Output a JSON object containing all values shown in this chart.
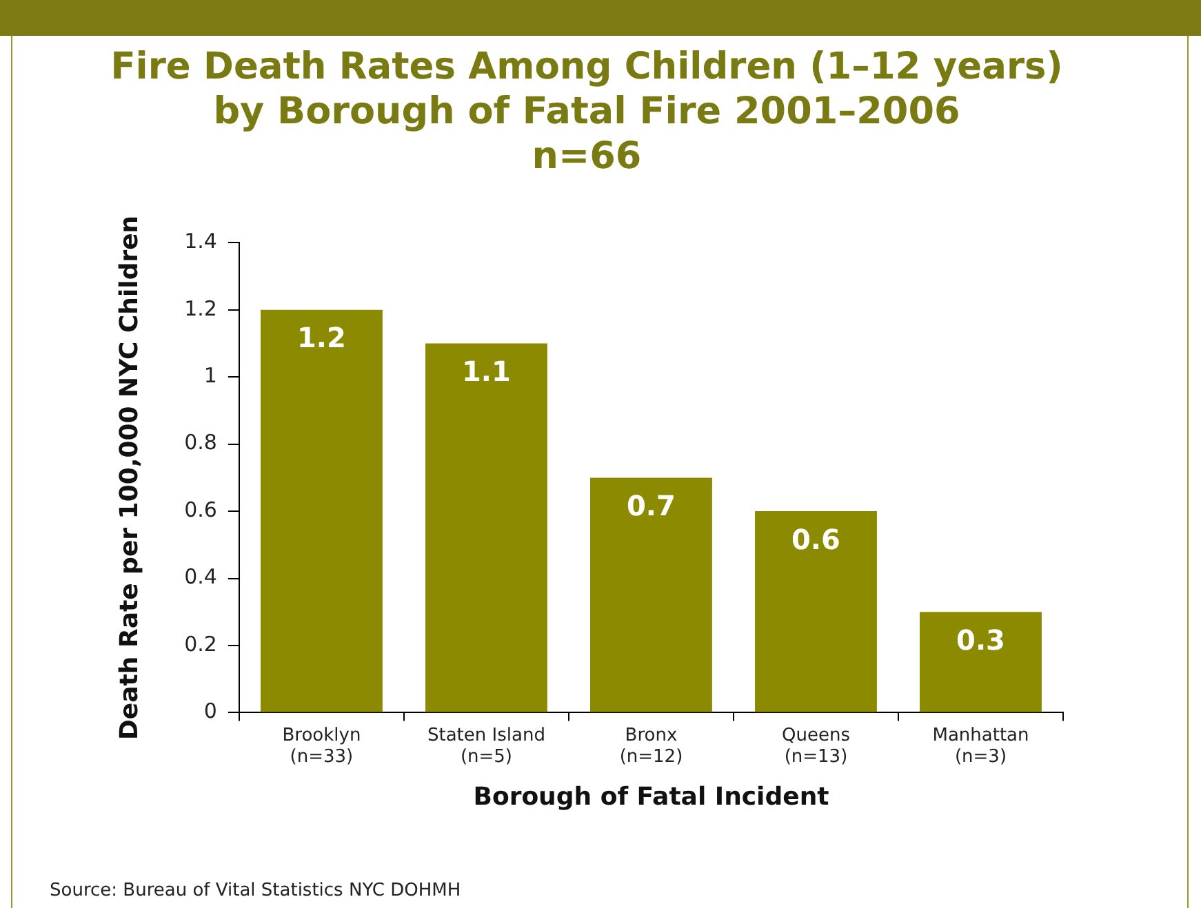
{
  "chart_data": {
    "type": "bar",
    "title": "Fire Death Rates Among Children (1–12 years)\nby Borough of Fatal Fire 2001–2006\nn=66",
    "xlabel": "Borough of Fatal Incident",
    "ylabel": "Death Rate per 100,000 NYC Children",
    "categories": [
      "Brooklyn\n(n=33)",
      "Staten Island\n(n=5)",
      "Bronx\n(n=12)",
      "Queens\n(n=13)",
      "Manhattan\n(n=3)"
    ],
    "values": [
      1.2,
      1.1,
      0.7,
      0.6,
      0.3
    ],
    "color": "#8c8a00",
    "ylim": [
      0,
      1.4
    ],
    "yticks": [
      0,
      0.2,
      0.4,
      0.6,
      0.8,
      1,
      1.2,
      1.4
    ],
    "grid": false,
    "legend": false,
    "data_labels": true,
    "annotations": [
      "Source: Bureau of Vital Statistics NYC DOHMH"
    ]
  }
}
